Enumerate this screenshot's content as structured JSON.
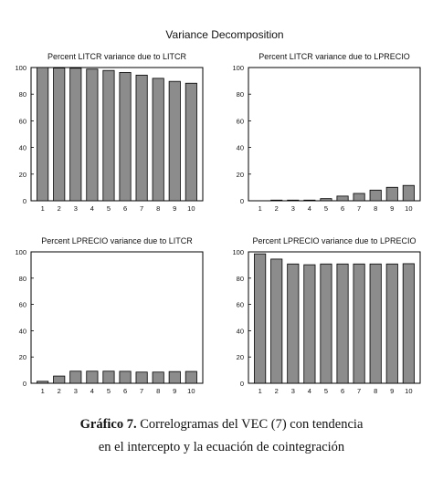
{
  "figure_title": "Variance Decomposition",
  "caption": {
    "label": "Gráfico 7.",
    "line1": "Correlogramas del VEC (7) con tendencia",
    "line2": "en el intercepto y la ecuación de cointegración"
  },
  "colors": {
    "bar_fill": "#8c8c8c",
    "bar_stroke": "#000000",
    "frame": "#000000"
  },
  "chart_data": [
    {
      "type": "bar",
      "title": "Percent LITCR variance due to LITCR",
      "categories": [
        "1",
        "2",
        "3",
        "4",
        "5",
        "6",
        "7",
        "8",
        "9",
        "10"
      ],
      "values": [
        100,
        99.6,
        99.5,
        98.8,
        97.8,
        96.3,
        94.3,
        91.9,
        89.6,
        88.2
      ],
      "ylim": [
        0,
        100
      ],
      "yticks": [
        "0",
        "20",
        "40",
        "60",
        "80",
        "100"
      ],
      "grid": false
    },
    {
      "type": "bar",
      "title": "Percent LITCR variance due to LPRECIO",
      "categories": [
        "1",
        "2",
        "3",
        "4",
        "5",
        "6",
        "7",
        "8",
        "9",
        "10"
      ],
      "values": [
        0,
        0.5,
        0.5,
        0.5,
        1.6,
        3.5,
        5.5,
        8.0,
        10.1,
        11.5
      ],
      "ylim": [
        0,
        100
      ],
      "yticks": [
        "0",
        "20",
        "40",
        "60",
        "80",
        "100"
      ],
      "grid": false
    },
    {
      "type": "bar",
      "title": "Percent LPRECIO variance due to LITCR",
      "categories": [
        "1",
        "2",
        "3",
        "4",
        "5",
        "6",
        "7",
        "8",
        "9",
        "10"
      ],
      "values": [
        1.5,
        5.5,
        9.2,
        9.2,
        9.2,
        9.1,
        8.5,
        8.5,
        8.9,
        9.0
      ],
      "ylim": [
        0,
        100
      ],
      "yticks": [
        "0",
        "20",
        "40",
        "60",
        "80",
        "100"
      ],
      "grid": false
    },
    {
      "type": "bar",
      "title": "Percent LPRECIO variance due to LPRECIO",
      "categories": [
        "1",
        "2",
        "3",
        "4",
        "5",
        "6",
        "7",
        "8",
        "9",
        "10"
      ],
      "values": [
        98.5,
        94.5,
        90.8,
        90.2,
        90.8,
        90.8,
        90.8,
        90.8,
        90.8,
        91.0
      ],
      "ylim": [
        0,
        100
      ],
      "yticks": [
        "0",
        "20",
        "40",
        "60",
        "80",
        "100"
      ],
      "grid": false
    }
  ]
}
